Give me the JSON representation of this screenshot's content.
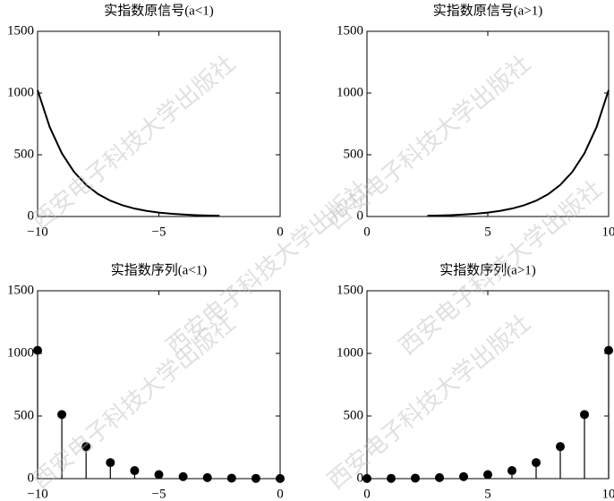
{
  "watermark": "西安电子科技大学出版社",
  "chart_data": [
    {
      "type": "line",
      "title": "实指数原信号(a<1)",
      "x": [
        -10,
        -9.5,
        -9,
        -8.5,
        -8,
        -7.5,
        -7,
        -6.5,
        -6,
        -5.5,
        -5,
        -4.5,
        -4,
        -3.5,
        -3,
        -2.5
      ],
      "values": [
        1024,
        724,
        512,
        362,
        256,
        181,
        128,
        91,
        64,
        45,
        32,
        23,
        16,
        11,
        8,
        6
      ],
      "color": "#000000",
      "xlim": [
        -10,
        0
      ],
      "ylim": [
        0,
        1500
      ],
      "xticks": [
        {
          "value": -10,
          "label": "−10"
        },
        {
          "value": -5,
          "label": "−5"
        },
        0
      ],
      "yticks": [
        0,
        500,
        1000,
        1500
      ]
    },
    {
      "type": "line",
      "title": "实指数原信号(a>1)",
      "x": [
        2.5,
        3,
        3.5,
        4,
        4.5,
        5,
        5.5,
        6,
        6.5,
        7,
        7.5,
        8,
        8.5,
        9,
        9.5,
        10
      ],
      "values": [
        6,
        8,
        11,
        16,
        23,
        32,
        45,
        64,
        91,
        128,
        181,
        256,
        362,
        512,
        724,
        1024
      ],
      "color": "#000000",
      "xlim": [
        0,
        10
      ],
      "ylim": [
        0,
        1500
      ],
      "xticks": [
        0,
        5,
        10
      ],
      "yticks": [
        0,
        500,
        1000,
        1500
      ]
    },
    {
      "type": "stem",
      "title": "实指数序列(a<1)",
      "x": [
        -10,
        -9,
        -8,
        -7,
        -6,
        -5,
        -4,
        -3,
        -2,
        -1,
        0
      ],
      "values": [
        1024,
        512,
        256,
        128,
        64,
        32,
        16,
        8,
        4,
        2,
        1
      ],
      "color": "#000000",
      "xlim": [
        -10,
        0
      ],
      "ylim": [
        0,
        1500
      ],
      "xticks": [
        {
          "value": -10,
          "label": "−10"
        },
        {
          "value": -5,
          "label": "−5"
        },
        0
      ],
      "yticks": [
        0,
        500,
        1000,
        1500
      ]
    },
    {
      "type": "stem",
      "title": "实指数序列(a>1)",
      "x": [
        0,
        1,
        2,
        3,
        4,
        5,
        6,
        7,
        8,
        9,
        10
      ],
      "values": [
        1,
        2,
        4,
        8,
        16,
        32,
        64,
        128,
        256,
        512,
        1024
      ],
      "color": "#000000",
      "xlim": [
        0,
        10
      ],
      "ylim": [
        0,
        1500
      ],
      "xticks": [
        0,
        5,
        10
      ],
      "yticks": [
        0,
        500,
        1000,
        1500
      ]
    }
  ]
}
